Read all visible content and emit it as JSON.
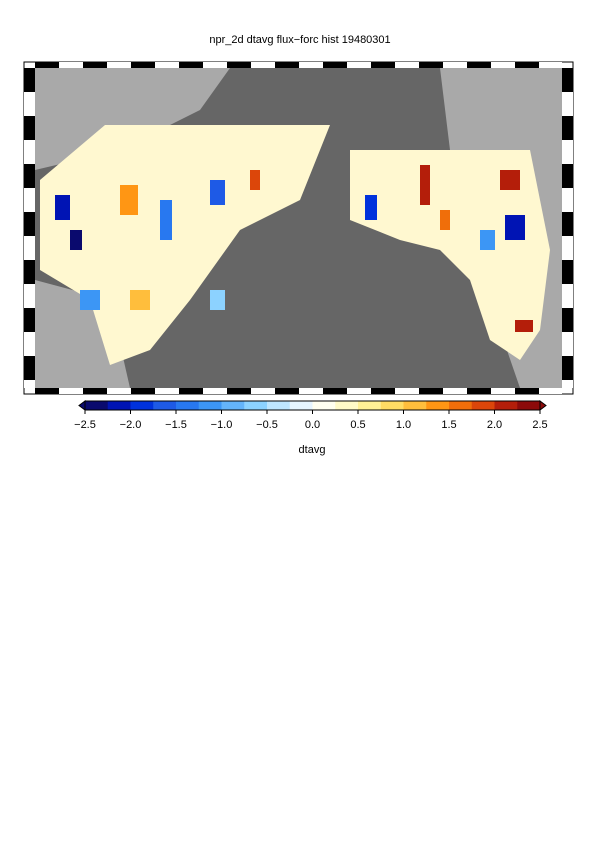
{
  "title": "npr_2d dtavg flux−forc hist 19480301",
  "colorbar": {
    "label": "dtavg",
    "lim": [
      -2.5,
      2.5
    ],
    "ticks": [
      {
        "value": -2.5,
        "label": "−2.5"
      },
      {
        "value": -2.0,
        "label": "−2.0"
      },
      {
        "value": -1.5,
        "label": "−1.5"
      },
      {
        "value": -1.0,
        "label": "−1.0"
      },
      {
        "value": -0.5,
        "label": "−0.5"
      },
      {
        "value": 0,
        "label": "0.0"
      },
      0.5,
      {
        "value": 1,
        "label": "1.0"
      },
      1.5,
      {
        "value": 2,
        "label": "2.0"
      },
      2.5
    ],
    "colors": [
      "#0a0a6e",
      "#0014b4",
      "#0032dc",
      "#1e5ae6",
      "#2878f0",
      "#3c96f5",
      "#64b4fa",
      "#8cd2ff",
      "#bee6ff",
      "#e6f5ff",
      "#fffff0",
      "#fffac8",
      "#fff096",
      "#ffdc64",
      "#ffbe3c",
      "#ff9614",
      "#f06e0a",
      "#dc460a",
      "#b41e0a",
      "#8c0a0a"
    ]
  }
}
